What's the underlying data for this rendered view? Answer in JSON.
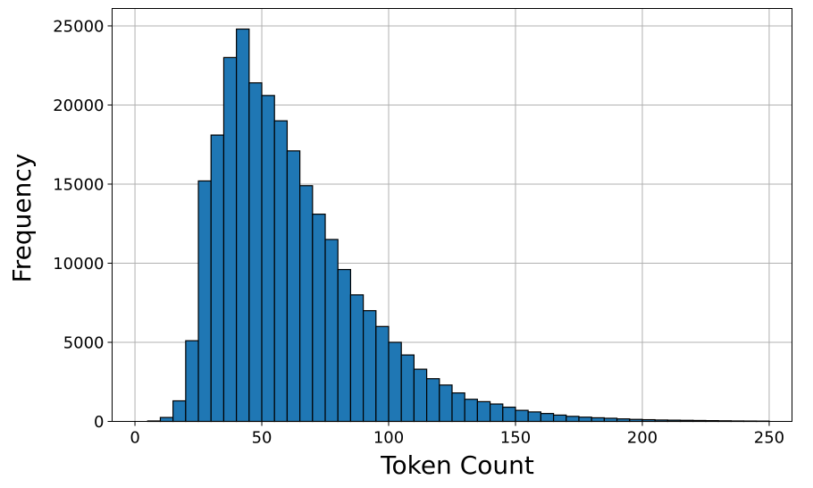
{
  "chart_data": {
    "type": "bar",
    "subtype": "histogram",
    "title": "",
    "xlabel": "Token Count",
    "ylabel": "Frequency",
    "xlim": [
      -9,
      259
    ],
    "ylim": [
      0,
      26100
    ],
    "xticks": [
      0,
      50,
      100,
      150,
      200,
      250
    ],
    "yticks": [
      0,
      5000,
      10000,
      15000,
      20000,
      25000
    ],
    "grid": true,
    "bar_color": "#1f77b4",
    "edge_color": "#000000",
    "bin_width": 5,
    "bins_start": [
      0,
      5,
      10,
      15,
      20,
      25,
      30,
      35,
      40,
      45,
      50,
      55,
      60,
      65,
      70,
      75,
      80,
      85,
      90,
      95,
      100,
      105,
      110,
      115,
      120,
      125,
      130,
      135,
      140,
      145,
      150,
      155,
      160,
      165,
      170,
      175,
      180,
      185,
      190,
      195,
      200,
      205,
      210,
      215,
      220,
      225,
      230,
      235,
      240,
      245
    ],
    "values": [
      0,
      30,
      250,
      1300,
      5100,
      15200,
      18100,
      23000,
      24800,
      21400,
      20600,
      19000,
      17100,
      14900,
      13100,
      11500,
      9600,
      8000,
      7000,
      6000,
      5000,
      4200,
      3300,
      2700,
      2300,
      1800,
      1400,
      1250,
      1100,
      900,
      700,
      600,
      500,
      400,
      320,
      270,
      230,
      200,
      160,
      130,
      110,
      90,
      80,
      70,
      60,
      50,
      40,
      30,
      25,
      20
    ]
  }
}
